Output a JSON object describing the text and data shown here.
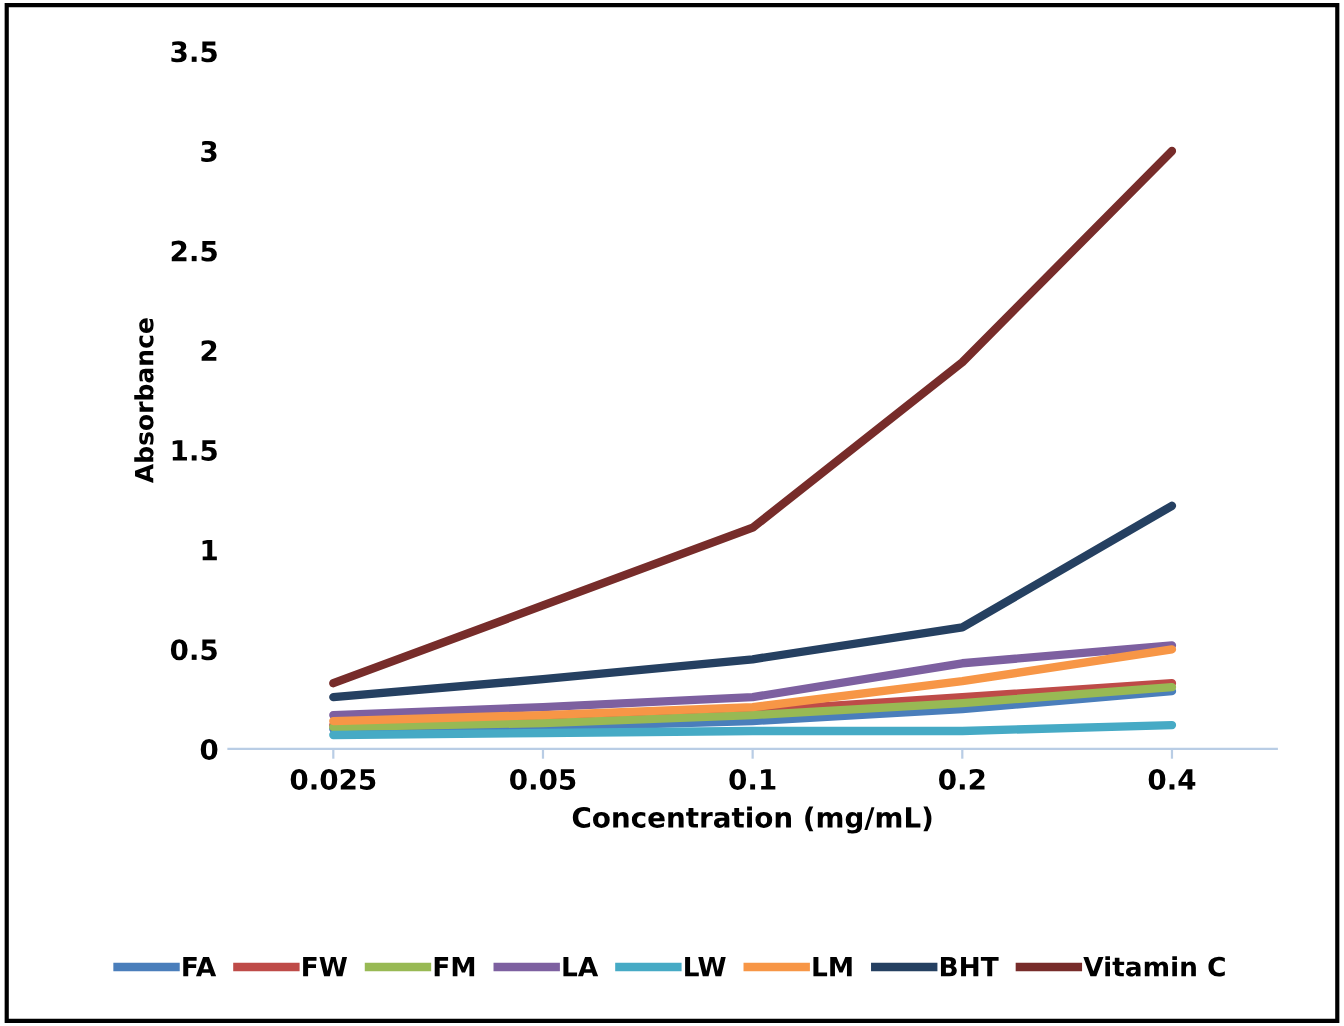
{
  "chart_data": {
    "type": "line",
    "xlabel": "Concentration (mg/mL)",
    "ylabel": "Absorbance",
    "categories": [
      "0.025",
      "0.05",
      "0.1",
      "0.2",
      "0.4"
    ],
    "ylim": [
      0,
      3.5
    ],
    "yticks": [
      0,
      0.5,
      1,
      1.5,
      2,
      2.5,
      3,
      3.5
    ],
    "grid": false,
    "legend": "bottom",
    "marker": "none",
    "series": [
      {
        "name": "FA",
        "color": "#4a7ebb",
        "values": [
          0.1,
          0.11,
          0.14,
          0.2,
          0.29
        ]
      },
      {
        "name": "FW",
        "color": "#be4b48",
        "values": [
          0.12,
          0.15,
          0.19,
          0.26,
          0.33
        ]
      },
      {
        "name": "FM",
        "color": "#98b954",
        "values": [
          0.11,
          0.13,
          0.17,
          0.23,
          0.31
        ]
      },
      {
        "name": "LA",
        "color": "#7d60a0",
        "values": [
          0.17,
          0.21,
          0.26,
          0.43,
          0.52
        ]
      },
      {
        "name": "LW",
        "color": "#46aac5",
        "values": [
          0.07,
          0.08,
          0.09,
          0.09,
          0.12
        ]
      },
      {
        "name": "LM",
        "color": "#f79646",
        "values": [
          0.14,
          0.17,
          0.21,
          0.34,
          0.5
        ]
      },
      {
        "name": "BHT",
        "color": "#254061",
        "values": [
          0.26,
          0.35,
          0.45,
          0.61,
          1.22
        ]
      },
      {
        "name": "Vitamin C",
        "color": "#772c2a",
        "values": [
          0.33,
          0.72,
          1.11,
          1.94,
          3.0
        ]
      }
    ]
  }
}
